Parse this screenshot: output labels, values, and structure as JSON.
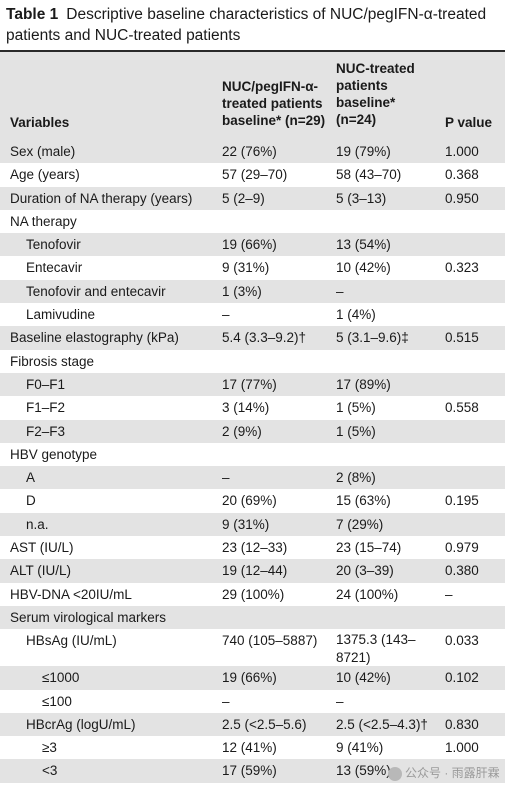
{
  "table": {
    "label": "Table 1",
    "caption": "Descriptive baseline characteristics of NUC/pegIFN-α-treated patients and NUC-treated patients",
    "headers": {
      "variables": "Variables",
      "group1_line1": "NUC/pegIFN-α-",
      "group1_line2": "treated patients",
      "group1_line3": "baseline* (n=29)",
      "group2_line1": "NUC-treated",
      "group2_line2": "patients",
      "group2_line3": "baseline*",
      "group2_line4": "(n=24)",
      "pvalue": "P value"
    },
    "rows": [
      {
        "variable": "Sex (male)",
        "g1": "22 (76%)",
        "g2": "19 (79%)",
        "p": "1.000",
        "indent": 0
      },
      {
        "variable": "Age (years)",
        "g1": "57 (29–70)",
        "g2": "58 (43–70)",
        "p": "0.368",
        "indent": 0
      },
      {
        "variable": "Duration of NA therapy (years)",
        "g1": "5 (2–9)",
        "g2": "5 (3–13)",
        "p": "0.950",
        "indent": 0
      },
      {
        "variable": "NA therapy",
        "g1": "",
        "g2": "",
        "p": "",
        "indent": 0
      },
      {
        "variable": "Tenofovir",
        "g1": "19 (66%)",
        "g2": "13 (54%)",
        "p": "",
        "indent": 1
      },
      {
        "variable": "Entecavir",
        "g1": "9 (31%)",
        "g2": "10 (42%)",
        "p": "0.323",
        "indent": 1
      },
      {
        "variable": "Tenofovir and entecavir",
        "g1": "1 (3%)",
        "g2": "–",
        "p": "",
        "indent": 1
      },
      {
        "variable": "Lamivudine",
        "g1": "–",
        "g2": "1 (4%)",
        "p": "",
        "indent": 1
      },
      {
        "variable": "Baseline elastography (kPa)",
        "g1": "5.4 (3.3–9.2)†",
        "g2": "5 (3.1–9.6)‡",
        "p": "0.515",
        "indent": 0
      },
      {
        "variable": "Fibrosis stage",
        "g1": "",
        "g2": "",
        "p": "",
        "indent": 0
      },
      {
        "variable": "F0–F1",
        "g1": "17 (77%)",
        "g2": "17 (89%)",
        "p": "",
        "indent": 1
      },
      {
        "variable": "F1–F2",
        "g1": "3 (14%)",
        "g2": "1 (5%)",
        "p": "0.558",
        "indent": 1
      },
      {
        "variable": "F2–F3",
        "g1": "2 (9%)",
        "g2": "1 (5%)",
        "p": "",
        "indent": 1
      },
      {
        "variable": "HBV genotype",
        "g1": "",
        "g2": "",
        "p": "",
        "indent": 0
      },
      {
        "variable": "A",
        "g1": "–",
        "g2": "2 (8%)",
        "p": "",
        "indent": 1
      },
      {
        "variable": "D",
        "g1": "20 (69%)",
        "g2": "15 (63%)",
        "p": "0.195",
        "indent": 1
      },
      {
        "variable": "n.a.",
        "g1": "9 (31%)",
        "g2": "7 (29%)",
        "p": "",
        "indent": 1
      },
      {
        "variable": "AST (IU/L)",
        "g1": "23 (12–33)",
        "g2": "23 (15–74)",
        "p": "0.979",
        "indent": 0
      },
      {
        "variable": "ALT (IU/L)",
        "g1": "19 (12–44)",
        "g2": "20 (3–39)",
        "p": "0.380",
        "indent": 0
      },
      {
        "variable": "HBV-DNA <20IU/mL",
        "g1": "29 (100%)",
        "g2": "24 (100%)",
        "p": "–",
        "indent": 0
      },
      {
        "variable": "Serum virological markers",
        "g1": "",
        "g2": "",
        "p": "",
        "indent": 0
      },
      {
        "variable": "HBsAg (IU/mL)",
        "g1": "740 (105–5887)",
        "g2": "1375.3 (143–8721)",
        "p": "0.033",
        "indent": 1,
        "tall": true
      },
      {
        "variable": "≤1000",
        "g1": "19 (66%)",
        "g2": "10 (42%)",
        "p": "0.102",
        "indent": 2
      },
      {
        "variable": "≤100",
        "g1": "–",
        "g2": "–",
        "p": "",
        "indent": 2
      },
      {
        "variable": "HBcrAg (logU/mL)",
        "g1": "2.5 (<2.5–5.6)",
        "g2": "2.5 (<2.5–4.3)†",
        "p": "0.830",
        "indent": 1
      },
      {
        "variable": "≥3",
        "g1": "12 (41%)",
        "g2": "9 (41%)",
        "p": "1.000",
        "indent": 2
      },
      {
        "variable": "<3",
        "g1": "17 (59%)",
        "g2": "13 (59%)",
        "p": "",
        "indent": 2
      }
    ]
  },
  "watermark": {
    "text": "公众号 · 雨露肝霖",
    "icon": "wechat-icon"
  }
}
